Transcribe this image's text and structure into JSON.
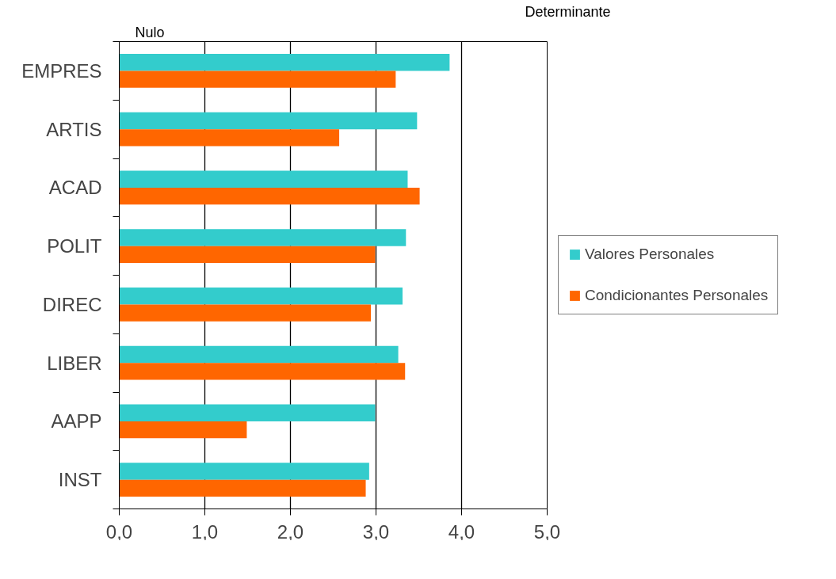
{
  "chart_data": {
    "type": "bar",
    "orientation": "horizontal",
    "categories": [
      "EMPRES",
      "ARTIS",
      "ACAD",
      "POLIT",
      "DIREC",
      "LIBER",
      "AAPP",
      "INST"
    ],
    "series": [
      {
        "name": "Valores Personales",
        "color": "#33cccc",
        "values": [
          3.86,
          3.48,
          3.37,
          3.35,
          3.31,
          3.26,
          2.99,
          2.92
        ]
      },
      {
        "name": "Condicionantes Personales",
        "color": "#ff6600",
        "values": [
          3.23,
          2.57,
          3.51,
          2.99,
          2.94,
          3.34,
          1.49,
          2.88
        ]
      }
    ],
    "xlim": [
      0,
      5
    ],
    "xticks": [
      {
        "value": 0,
        "label": "0,0"
      },
      {
        "value": 1,
        "label": "1,0"
      },
      {
        "value": 2,
        "label": "2,0"
      },
      {
        "value": 3,
        "label": "3,0"
      },
      {
        "value": 4,
        "label": "4,0"
      },
      {
        "value": 5,
        "label": "5,0"
      }
    ],
    "grid": "x",
    "legend": "right",
    "annotations": [
      "Nulo",
      "Determinante"
    ]
  }
}
